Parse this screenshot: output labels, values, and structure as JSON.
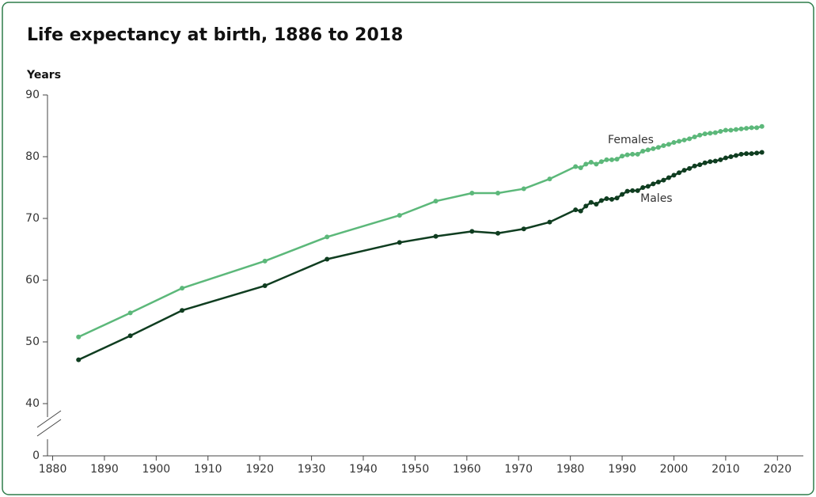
{
  "chart_data": {
    "type": "line",
    "title": "Life expectancy at birth, 1886 to 2018",
    "y_label": "Years",
    "x": [
      1885,
      1895,
      1905,
      1921,
      1933,
      1947,
      1954,
      1961,
      1966,
      1971,
      1976,
      1981,
      1982,
      1983,
      1984,
      1985,
      1986,
      1987,
      1988,
      1989,
      1990,
      1991,
      1992,
      1993,
      1994,
      1995,
      1996,
      1997,
      1998,
      1999,
      2000,
      2001,
      2002,
      2003,
      2004,
      2005,
      2006,
      2007,
      2008,
      2009,
      2010,
      2011,
      2012,
      2013,
      2014,
      2015,
      2016,
      2017
    ],
    "series": [
      {
        "name": "Females",
        "color": "#5cb87a",
        "values": [
          50.8,
          54.7,
          58.7,
          63.1,
          67.0,
          70.5,
          72.8,
          74.1,
          74.1,
          74.8,
          76.4,
          78.4,
          78.2,
          78.8,
          79.1,
          78.8,
          79.2,
          79.5,
          79.5,
          79.6,
          80.1,
          80.3,
          80.4,
          80.4,
          80.9,
          81.1,
          81.3,
          81.5,
          81.8,
          82.0,
          82.3,
          82.5,
          82.7,
          82.9,
          83.2,
          83.5,
          83.7,
          83.8,
          83.9,
          84.1,
          84.3,
          84.3,
          84.4,
          84.5,
          84.6,
          84.7,
          84.7,
          84.9
        ]
      },
      {
        "name": "Males",
        "color": "#0f3d20",
        "values": [
          47.1,
          51.0,
          55.1,
          59.1,
          63.4,
          66.1,
          67.1,
          67.9,
          67.6,
          68.3,
          69.4,
          71.4,
          71.2,
          72.0,
          72.6,
          72.3,
          72.9,
          73.2,
          73.1,
          73.3,
          73.9,
          74.4,
          74.5,
          74.5,
          75.0,
          75.2,
          75.6,
          75.9,
          76.2,
          76.6,
          77.0,
          77.4,
          77.8,
          78.1,
          78.5,
          78.7,
          79.0,
          79.2,
          79.3,
          79.5,
          79.8,
          80.0,
          80.2,
          80.4,
          80.5,
          80.5,
          80.6,
          80.7
        ]
      }
    ],
    "xlim": [
      1879,
      2025
    ],
    "xticks": [
      1880,
      1890,
      1900,
      1910,
      1920,
      1930,
      1940,
      1950,
      1960,
      1970,
      1980,
      1990,
      2000,
      2010,
      2020
    ],
    "ylim": [
      0,
      90
    ],
    "yticks": [
      0,
      40,
      50,
      60,
      70,
      80,
      90
    ],
    "axis_break": [
      0,
      40
    ],
    "grid": false
  }
}
